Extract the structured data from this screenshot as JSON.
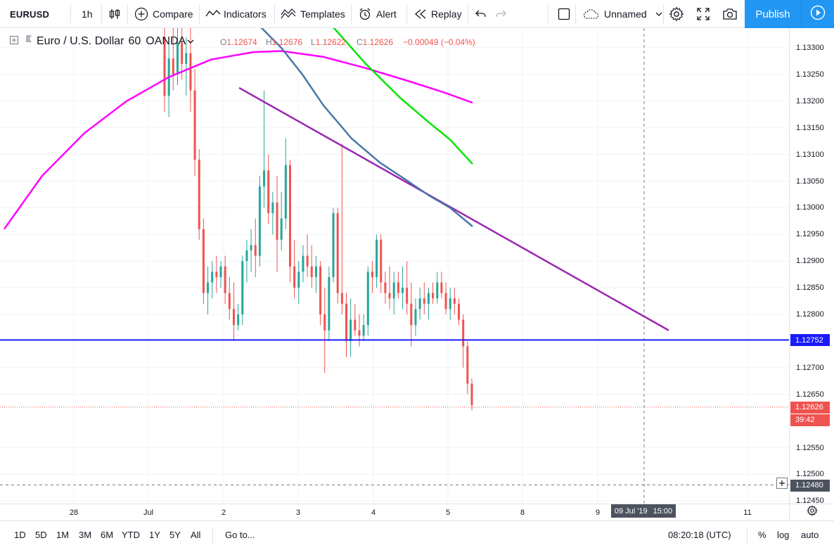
{
  "toolbar": {
    "symbol": "EURUSD",
    "interval": "1h",
    "compare": "Compare",
    "indicators": "Indicators",
    "templates": "Templates",
    "alert": "Alert",
    "replay": "Replay",
    "layout_name": "Unnamed",
    "publish": "Publish"
  },
  "legend": {
    "title": "Euro / U.S. Dollar",
    "interval": "60",
    "source": "OANDA",
    "open_label": "O",
    "open": "1.12674",
    "high_label": "H",
    "high": "1.12676",
    "low_label": "L",
    "low": "1.12622",
    "close_label": "C",
    "close": "1.12626",
    "change": "−0.00049 (−0.04%)"
  },
  "price_axis": {
    "ticks": [
      "1.13300",
      "1.13250",
      "1.13200",
      "1.13150",
      "1.13100",
      "1.13050",
      "1.13000",
      "1.12950",
      "1.12900",
      "1.12850",
      "1.12800",
      "1.12700",
      "1.12650",
      "1.12550",
      "1.12500",
      "1.12450"
    ],
    "horizontal_line_price": "1.12752",
    "current_price": "1.12626",
    "countdown": "39:42",
    "crosshair_price": "1.12480"
  },
  "time_axis": {
    "labels": [
      "28",
      "Jul",
      "2",
      "3",
      "4",
      "5",
      "8",
      "9",
      "11"
    ],
    "crosshair_date": "09 Jul '19",
    "crosshair_time": "15:00"
  },
  "bottom_bar": {
    "ranges": [
      "1D",
      "5D",
      "1M",
      "3M",
      "6M",
      "YTD",
      "1Y",
      "5Y",
      "All"
    ],
    "goto": "Go to...",
    "clock": "08:20:18 (UTC)",
    "percent": "%",
    "log": "log",
    "auto": "auto"
  },
  "colors": {
    "up": "#26a69a",
    "down": "#ef5350",
    "hline": "#1a1aff",
    "trendline": "#9c27b0",
    "ma_magenta": "#ff00ff",
    "ma_green": "#00e600",
    "ma_steel": "#4a77a8",
    "accent": "#2196f3"
  },
  "icons": [
    "candles-icon",
    "compare-plus-icon",
    "indicators-icon",
    "templates-icon",
    "alarm-clock-icon",
    "replay-icon",
    "undo-icon",
    "redo-icon",
    "layout-square-icon",
    "cloud-icon",
    "chevron-down-icon",
    "gear-icon",
    "fullscreen-icon",
    "camera-icon",
    "play-icon",
    "plus-icon"
  ]
}
